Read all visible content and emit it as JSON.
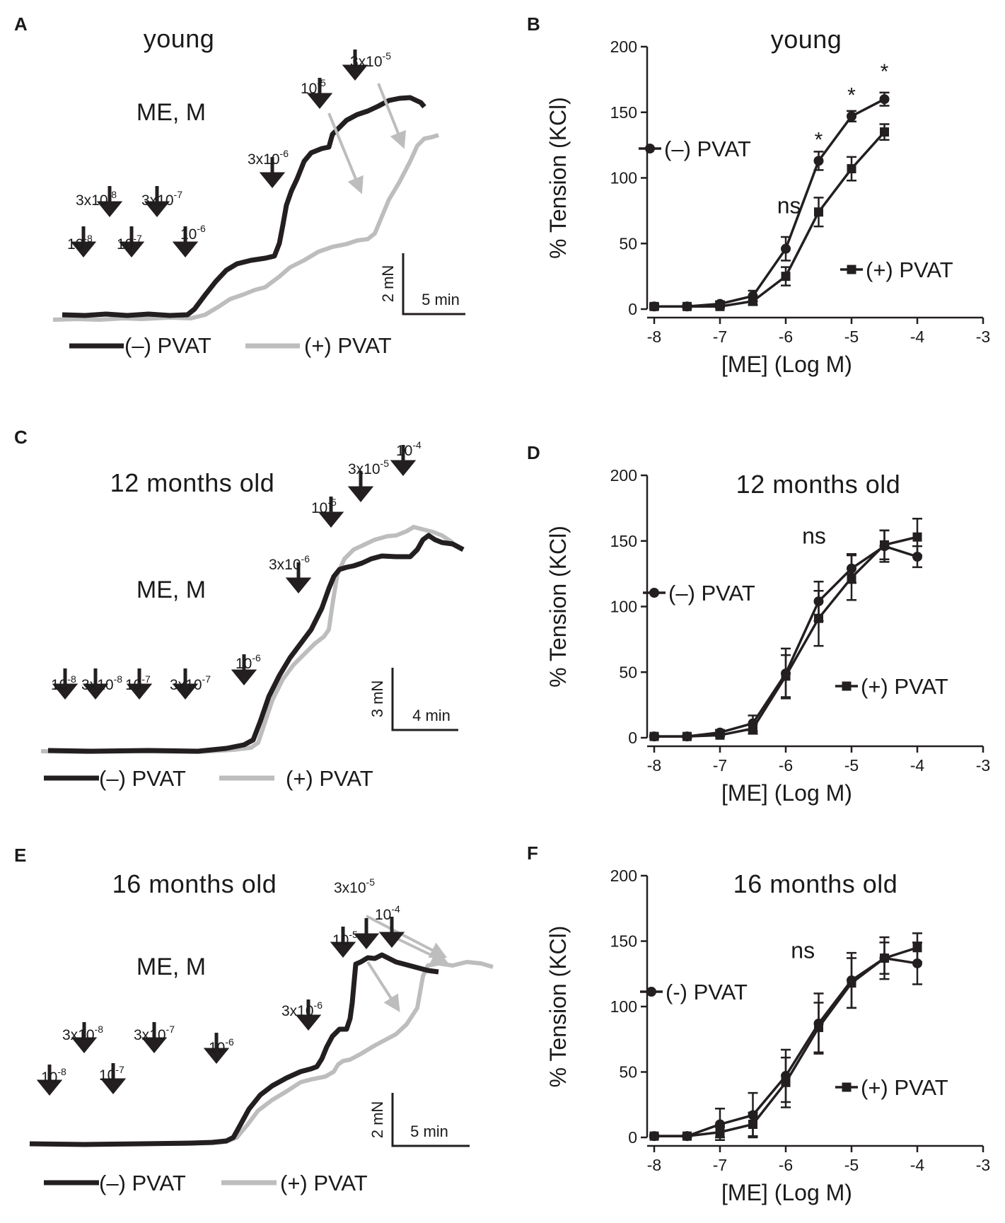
{
  "panels": {
    "A": {
      "label": "A",
      "title": "young",
      "subtitle": "ME, M",
      "doses": [
        {
          "text": "10",
          "exp": "-8"
        },
        {
          "text": "3x10",
          "exp": "-8"
        },
        {
          "text": "10",
          "exp": "-7"
        },
        {
          "text": "3x10",
          "exp": "-7"
        },
        {
          "text": "10",
          "exp": "-6"
        },
        {
          "text": "3x10",
          "exp": "-6"
        },
        {
          "text": "10",
          "exp": "-5"
        },
        {
          "text": "3x10",
          "exp": "-5"
        }
      ],
      "scale": {
        "y": "2 mN",
        "x": "5 min"
      },
      "legend": [
        "(–) PVAT",
        "(+) PVAT"
      ]
    },
    "C": {
      "label": "C",
      "title": "12 months old",
      "subtitle": "ME, M",
      "doses": [
        {
          "text": "10",
          "exp": "-8"
        },
        {
          "text": "3x10",
          "exp": "-8"
        },
        {
          "text": "10",
          "exp": "-7"
        },
        {
          "text": "3x10",
          "exp": "-7"
        },
        {
          "text": "10",
          "exp": "-6"
        },
        {
          "text": "3x10",
          "exp": "-6"
        },
        {
          "text": "10",
          "exp": "-5"
        },
        {
          "text": "3x10",
          "exp": "-5"
        },
        {
          "text": "10",
          "exp": "-4"
        }
      ],
      "scale": {
        "y": "3 mN",
        "x": "4 min"
      },
      "legend": [
        "(–) PVAT",
        "(+) PVAT"
      ]
    },
    "E": {
      "label": "E",
      "title": "16 months old",
      "subtitle": "ME, M",
      "doses": [
        {
          "text": "10",
          "exp": "-8"
        },
        {
          "text": "3x10",
          "exp": "-8"
        },
        {
          "text": "10",
          "exp": "-7"
        },
        {
          "text": "3x10",
          "exp": "-7"
        },
        {
          "text": "10",
          "exp": "-6"
        },
        {
          "text": "3x10",
          "exp": "-6"
        },
        {
          "text": "10",
          "exp": "-5"
        },
        {
          "text": "3x10",
          "exp": "-5"
        },
        {
          "text": "10",
          "exp": "-4"
        }
      ],
      "scale": {
        "y": "2 mN",
        "x": "5 min"
      },
      "legend": [
        "(–) PVAT",
        "(+) PVAT"
      ]
    }
  },
  "colors": {
    "black": "#231f20",
    "gray": "#bdbdbd"
  },
  "chart_data": [
    {
      "panel": "B",
      "type": "line",
      "title": "young",
      "xlabel": "[ME] (Log M)",
      "ylabel": "% Tension (KCl)",
      "xlim": [
        -8,
        -3
      ],
      "ylim": [
        0,
        200
      ],
      "xticks": [
        -8,
        -7,
        -6,
        -5,
        -4,
        -3
      ],
      "yticks": [
        0,
        50,
        100,
        150,
        200
      ],
      "series": [
        {
          "name": "(–) PVAT",
          "marker": "circle",
          "x": [
            -8,
            -7.5,
            -7,
            -6.5,
            -6,
            -5.5,
            -5,
            -4.5
          ],
          "y": [
            2,
            2,
            4,
            10,
            46,
            113,
            147,
            160
          ],
          "err": [
            2,
            1,
            2,
            4,
            9,
            7,
            4,
            5
          ]
        },
        {
          "name": "(+) PVAT",
          "marker": "square",
          "x": [
            -8,
            -7.5,
            -7,
            -6.5,
            -6,
            -5.5,
            -5,
            -4.5
          ],
          "y": [
            2,
            2,
            2,
            6,
            25,
            74,
            107,
            135
          ],
          "err": [
            1,
            1,
            1,
            3,
            7,
            11,
            9,
            6
          ]
        }
      ],
      "annotations": [
        {
          "text": "ns",
          "x": -5.95,
          "y": 73
        },
        {
          "text": "*",
          "x": -5.5,
          "y": 128
        },
        {
          "text": "*",
          "x": -5.0,
          "y": 162
        },
        {
          "text": "*",
          "x": -4.5,
          "y": 180
        }
      ],
      "legend": [
        "(–) PVAT",
        "(+) PVAT"
      ]
    },
    {
      "panel": "D",
      "type": "line",
      "title": "12 months old",
      "xlabel": "[ME] (Log M)",
      "ylabel": "% Tension (KCl)",
      "xlim": [
        -8,
        -3
      ],
      "ylim": [
        0,
        200
      ],
      "xticks": [
        -8,
        -7,
        -6,
        -5,
        -4,
        -3
      ],
      "yticks": [
        0,
        50,
        100,
        150,
        200
      ],
      "series": [
        {
          "name": "(–) PVAT",
          "marker": "circle",
          "x": [
            -8,
            -7.5,
            -7,
            -6.5,
            -6,
            -5.5,
            -5,
            -4.5,
            -4
          ],
          "y": [
            1,
            1,
            4,
            11,
            49,
            104,
            129,
            146,
            138
          ],
          "err": [
            1,
            1,
            2,
            6,
            19,
            15,
            11,
            12,
            8
          ]
        },
        {
          "name": "(+) PVAT",
          "marker": "square",
          "x": [
            -8,
            -7.5,
            -7,
            -6.5,
            -6,
            -5.5,
            -5,
            -4.5,
            -4
          ],
          "y": [
            1,
            1,
            2,
            7,
            47,
            91,
            122,
            147,
            153
          ],
          "err": [
            1,
            1,
            1,
            4,
            16,
            21,
            17,
            11,
            14
          ]
        }
      ],
      "annotations": [
        {
          "text": "ns",
          "x": -5.57,
          "y": 148
        }
      ],
      "legend": [
        "(–) PVAT",
        "(+) PVAT"
      ]
    },
    {
      "panel": "F",
      "type": "line",
      "title": "16 months old",
      "xlabel": "[ME] (Log M)",
      "ylabel": "% Tension (KCl)",
      "xlim": [
        -8,
        -3
      ],
      "ylim": [
        0,
        200
      ],
      "xticks": [
        -8,
        -7,
        -6,
        -5,
        -4,
        -3
      ],
      "yticks": [
        0,
        50,
        100,
        150,
        200
      ],
      "series": [
        {
          "name": "(-) PVAT",
          "marker": "circle",
          "x": [
            -8,
            -7.5,
            -7,
            -6.5,
            -6,
            -5.5,
            -5,
            -4.5,
            -4
          ],
          "y": [
            1,
            1,
            10,
            17,
            47,
            87,
            120,
            137,
            133
          ],
          "err": [
            1,
            1,
            12,
            17,
            20,
            23,
            21,
            16,
            16
          ]
        },
        {
          "name": "(+) PVAT",
          "marker": "square",
          "x": [
            -8,
            -7.5,
            -7,
            -6.5,
            -6,
            -5.5,
            -5,
            -4.5,
            -4
          ],
          "y": [
            1,
            1,
            4,
            10,
            42,
            84,
            118,
            137,
            145
          ],
          "err": [
            1,
            1,
            4,
            9,
            19,
            19,
            19,
            12,
            11
          ]
        }
      ],
      "annotations": [
        {
          "text": "ns",
          "x": -5.74,
          "y": 137
        }
      ],
      "legend": [
        "(-) PVAT",
        "(+) PVAT"
      ]
    }
  ]
}
